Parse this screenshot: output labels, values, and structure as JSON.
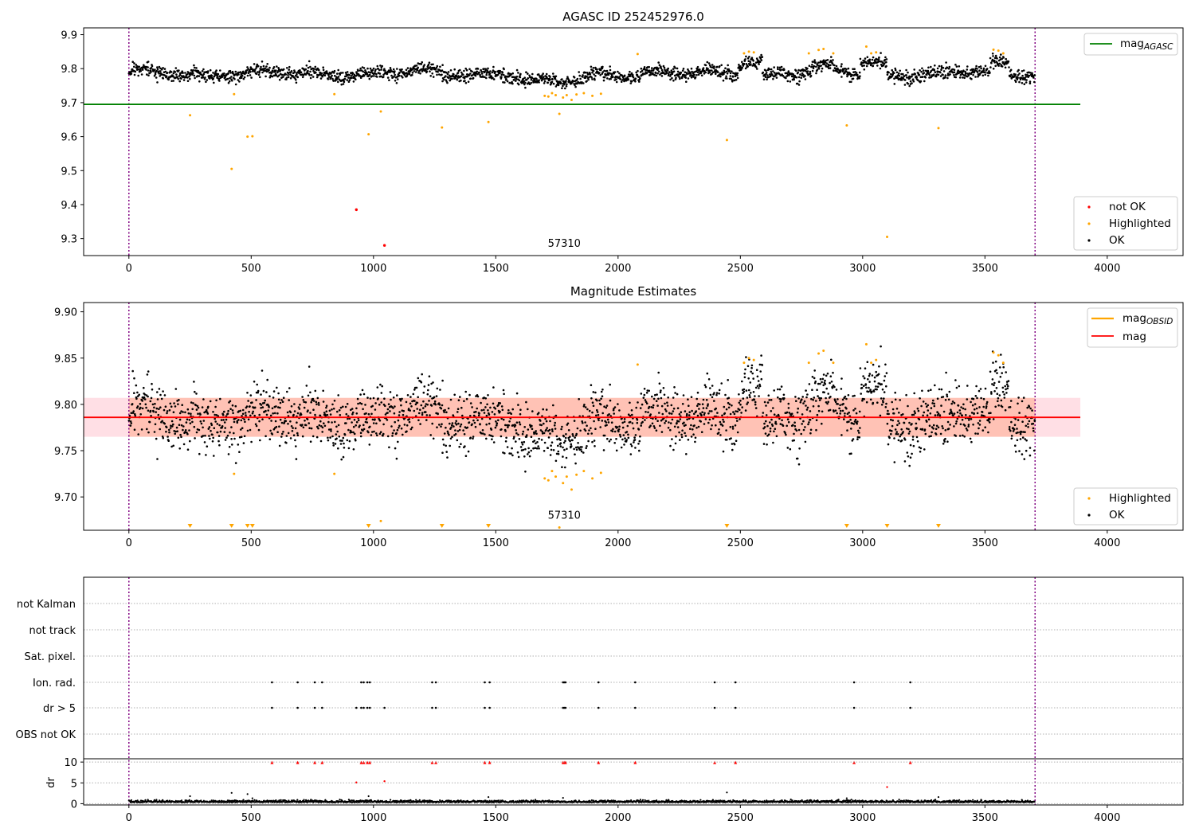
{
  "chart_data": [
    {
      "type": "scatter",
      "title": "AGASC ID 252452976.0",
      "xlim": [
        -185,
        4310
      ],
      "ylim": [
        9.25,
        9.92
      ],
      "xticks": [
        "0",
        "500",
        "1000",
        "1500",
        "2000",
        "2500",
        "3000",
        "3500",
        "4000"
      ],
      "yticks": [
        "9.3",
        "9.4",
        "9.5",
        "9.6",
        "9.7",
        "9.8",
        "9.9"
      ],
      "annotation": {
        "text": "57310",
        "x": 1780,
        "y": 9.285
      },
      "vlines": [
        0,
        3705
      ],
      "hline": {
        "name": "mag_AGASC",
        "label_main": "mag",
        "label_sub": "AGASC",
        "y": 9.695,
        "color": "#008000"
      },
      "legend_top": "top-right",
      "legend_bottom": "bottom-right",
      "series": [
        {
          "name": "not OK",
          "color": "#ff0000",
          "points": [
            [
              930,
              9.385
            ],
            [
              1045,
              9.28
            ]
          ]
        },
        {
          "name": "Highlighted",
          "color": "#ffa500",
          "points": [
            [
              250,
              9.663
            ],
            [
              420,
              9.505
            ],
            [
              430,
              9.725
            ],
            [
              485,
              9.6
            ],
            [
              505,
              9.601
            ],
            [
              840,
              9.725
            ],
            [
              980,
              9.607
            ],
            [
              1030,
              9.674
            ],
            [
              1280,
              9.627
            ],
            [
              1470,
              9.643
            ],
            [
              1700,
              9.72
            ],
            [
              1715,
              9.718
            ],
            [
              1730,
              9.728
            ],
            [
              1745,
              9.722
            ],
            [
              1760,
              9.667
            ],
            [
              1775,
              9.715
            ],
            [
              1790,
              9.722
            ],
            [
              1810,
              9.708
            ],
            [
              1830,
              9.724
            ],
            [
              1860,
              9.728
            ],
            [
              1895,
              9.72
            ],
            [
              1930,
              9.726
            ],
            [
              2080,
              9.843
            ],
            [
              2445,
              9.59
            ],
            [
              2515,
              9.845
            ],
            [
              2535,
              9.85
            ],
            [
              2555,
              9.848
            ],
            [
              2780,
              9.845
            ],
            [
              2820,
              9.855
            ],
            [
              2840,
              9.858
            ],
            [
              2880,
              9.845
            ],
            [
              2935,
              9.633
            ],
            [
              3015,
              9.865
            ],
            [
              3035,
              9.845
            ],
            [
              3055,
              9.848
            ],
            [
              3100,
              9.305
            ],
            [
              3310,
              9.625
            ],
            [
              3535,
              9.856
            ],
            [
              3555,
              9.853
            ],
            [
              3575,
              9.845
            ]
          ]
        },
        {
          "name": "OK",
          "color": "#000000",
          "range": [
            0,
            3705
          ],
          "baseline_y": 9.786,
          "noise": 0.013,
          "count": 2300
        }
      ]
    },
    {
      "type": "scatter",
      "title": "Magnitude Estimates",
      "xlim": [
        -185,
        4310
      ],
      "ylim": [
        9.664,
        9.91
      ],
      "xticks": [
        "0",
        "500",
        "1000",
        "1500",
        "2000",
        "2500",
        "3000",
        "3500",
        "4000"
      ],
      "yticks": [
        "9.70",
        "9.75",
        "9.80",
        "9.85",
        "9.90"
      ],
      "annotation": {
        "text": "57310",
        "x": 1780,
        "y": 9.673
      },
      "vlines": [
        0,
        3705
      ],
      "mag_line": {
        "name": "mag",
        "y": 9.786,
        "color": "#ff0000"
      },
      "mag_band": {
        "y0": 9.765,
        "y1": 9.807,
        "color": "#ffc0cb"
      },
      "obsid_line": {
        "name": "mag_OBSID",
        "label_main": "mag",
        "label_sub": "OBSID",
        "color": "#ffa500"
      },
      "obsid_band": {
        "x0": 0,
        "x1": 3705,
        "y0": 9.765,
        "y1": 9.807,
        "color": "#ffa07a"
      },
      "offscale_markers_x": [
        250,
        420,
        485,
        505,
        980,
        1280,
        1470,
        2445,
        2935,
        3100,
        3310
      ],
      "legend_top": "top-right",
      "legend_bottom": "bottom-right",
      "series": [
        {
          "name": "Highlighted",
          "color": "#ffa500"
        },
        {
          "name": "OK",
          "color": "#000000",
          "range": [
            0,
            3705
          ],
          "baseline_y": 9.786,
          "noise": 0.016,
          "count": 2300
        }
      ]
    },
    {
      "type": "scatter",
      "title": "",
      "xlim": [
        -185,
        4310
      ],
      "xticks": [
        "0",
        "500",
        "1000",
        "1500",
        "2000",
        "2500",
        "3000",
        "3500",
        "4000"
      ],
      "vlines": [
        0,
        3705
      ],
      "flag_rows": [
        "not Kalman",
        "not track",
        "Sat. pixel.",
        "Ion. rad.",
        "dr > 5",
        "OBS not OK"
      ],
      "flag_x": [
        585,
        690,
        760,
        790,
        950,
        960,
        975,
        985,
        1240,
        1255,
        1455,
        1475,
        1775,
        1780,
        1785,
        1920,
        2070,
        2395,
        2480,
        2965,
        3195
      ],
      "dr_extra_x": [
        930,
        1045
      ],
      "dr": {
        "ylabel": "dr",
        "yticks": [
          "0",
          "5",
          "10"
        ],
        "ylim": [
          -0.3,
          10.6
        ],
        "red_points": [
          [
            585,
            9.9
          ],
          [
            690,
            9.9
          ],
          [
            760,
            9.9
          ],
          [
            790,
            9.9
          ],
          [
            950,
            9.9
          ],
          [
            960,
            9.9
          ],
          [
            975,
            9.9
          ],
          [
            985,
            9.9
          ],
          [
            1240,
            9.9
          ],
          [
            1255,
            9.9
          ],
          [
            1455,
            9.9
          ],
          [
            1475,
            9.9
          ],
          [
            1775,
            9.9
          ],
          [
            1780,
            9.9
          ],
          [
            1785,
            9.9
          ],
          [
            1920,
            9.9
          ],
          [
            2070,
            9.9
          ],
          [
            2395,
            9.9
          ],
          [
            2480,
            9.9
          ],
          [
            2965,
            9.9
          ],
          [
            3195,
            9.9
          ],
          [
            930,
            5.1
          ],
          [
            1045,
            5.4
          ],
          [
            3100,
            4.0
          ]
        ],
        "black_points": [
          [
            250,
            1.8
          ],
          [
            420,
            2.6
          ],
          [
            485,
            2.3
          ],
          [
            505,
            1.3
          ],
          [
            980,
            1.8
          ],
          [
            1470,
            1.6
          ],
          [
            1775,
            1.4
          ],
          [
            2445,
            2.7
          ],
          [
            2935,
            1.3
          ],
          [
            3310,
            1.6
          ]
        ],
        "baseline": 0.3
      }
    }
  ]
}
